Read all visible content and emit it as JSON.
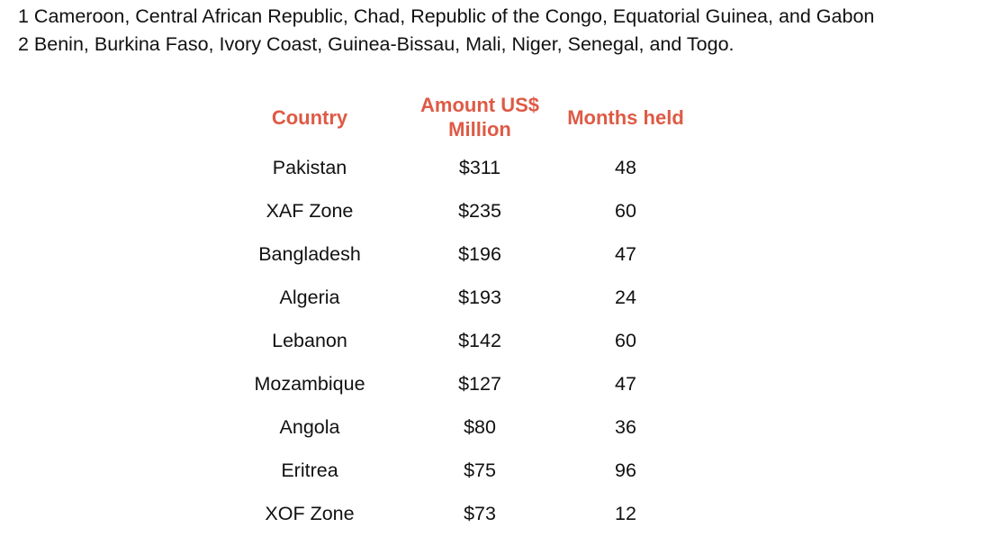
{
  "footnotes": [
    "1 Cameroon, Central African Republic, Chad, Republic of the Congo, Equatorial Guinea, and Gabon",
    "2 Benin, Burkina Faso, Ivory Coast, Guinea-Bissau, Mali, Niger, Senegal, and Togo."
  ],
  "table": {
    "headers": {
      "country": "Country",
      "amount_line1": "Amount US$",
      "amount_line2": "Million",
      "months": "Months held"
    },
    "rows": [
      {
        "country": "Pakistan",
        "amount": "$311",
        "months": "48"
      },
      {
        "country": "XAF Zone",
        "amount": "$235",
        "months": "60"
      },
      {
        "country": "Bangladesh",
        "amount": "$196",
        "months": "47"
      },
      {
        "country": "Algeria",
        "amount": "$193",
        "months": "24"
      },
      {
        "country": "Lebanon",
        "amount": "$142",
        "months": "60"
      },
      {
        "country": "Mozambique",
        "amount": "$127",
        "months": "47"
      },
      {
        "country": "Angola",
        "amount": "$80",
        "months": "36"
      },
      {
        "country": "Eritrea",
        "amount": "$75",
        "months": "96"
      },
      {
        "country": "XOF Zone",
        "amount": "$73",
        "months": "12"
      }
    ]
  },
  "colors": {
    "header_text": "#de5a45",
    "body_text": "#111111",
    "background": "#ffffff"
  }
}
